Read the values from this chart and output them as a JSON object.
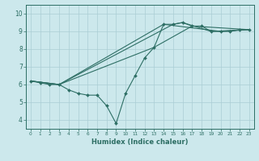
{
  "title": "",
  "xlabel": "Humidex (Indice chaleur)",
  "bg_color": "#cce8ec",
  "line_color": "#2d6e64",
  "grid_color": "#aacdd4",
  "xlim": [
    -0.5,
    23.5
  ],
  "ylim": [
    3.5,
    10.5
  ],
  "xticks": [
    0,
    1,
    2,
    3,
    4,
    5,
    6,
    7,
    8,
    9,
    10,
    11,
    12,
    13,
    14,
    15,
    16,
    17,
    18,
    19,
    20,
    21,
    22,
    23
  ],
  "yticks": [
    4,
    5,
    6,
    7,
    8,
    9,
    10
  ],
  "series": [
    {
      "x": [
        0,
        1,
        2,
        3,
        4,
        5,
        6,
        7,
        8,
        9,
        10,
        11,
        12,
        13,
        14,
        15,
        16,
        17,
        18,
        19,
        20,
        21,
        22,
        23
      ],
      "y": [
        6.2,
        6.1,
        6.0,
        6.0,
        5.7,
        5.5,
        5.4,
        5.4,
        4.8,
        3.8,
        5.5,
        6.5,
        7.5,
        8.1,
        9.4,
        9.4,
        9.5,
        9.3,
        9.3,
        9.0,
        9.0,
        9.0,
        9.1,
        9.1
      ],
      "marker": true
    },
    {
      "x": [
        0,
        3,
        13,
        17,
        23
      ],
      "y": [
        6.2,
        6.0,
        8.1,
        9.3,
        9.1
      ],
      "marker": false
    },
    {
      "x": [
        0,
        3,
        14,
        20,
        23
      ],
      "y": [
        6.2,
        6.0,
        9.4,
        9.0,
        9.1
      ],
      "marker": false
    },
    {
      "x": [
        0,
        3,
        15,
        16,
        19,
        23
      ],
      "y": [
        6.2,
        6.0,
        9.4,
        9.5,
        9.0,
        9.1
      ],
      "marker": false
    }
  ],
  "xlabel_fontsize": 6.0,
  "tick_fontsize_x": 4.2,
  "tick_fontsize_y": 5.5
}
